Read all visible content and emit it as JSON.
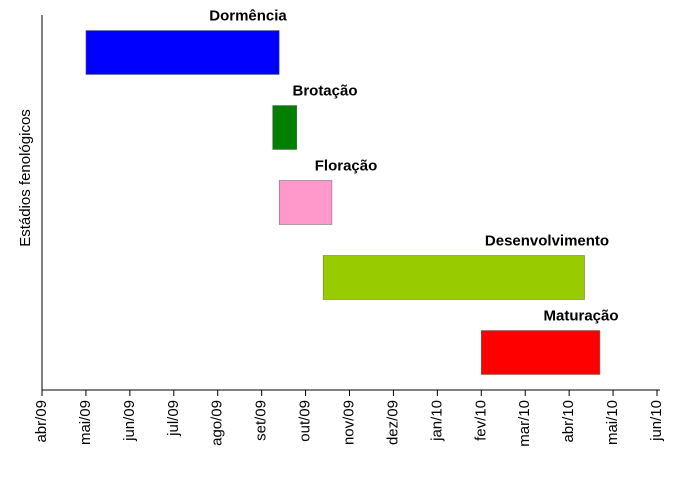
{
  "chart_data": {
    "type": "gantt",
    "ylabel": "Estádios fenológicos",
    "tasks": [
      {
        "label": "Dormência",
        "start": 1.0,
        "end": 5.4,
        "color": "#0000ff"
      },
      {
        "label": "Brotação",
        "start": 5.25,
        "end": 5.8,
        "color": "#008000"
      },
      {
        "label": "Floração",
        "start": 5.4,
        "end": 6.6,
        "color": "#ff99cc"
      },
      {
        "label": "Desenvolvimento",
        "start": 6.4,
        "end": 12.35,
        "color": "#99cc00"
      },
      {
        "label": "Maturação",
        "start": 10.0,
        "end": 12.7,
        "color": "#ff0000"
      }
    ],
    "xlim": [
      0,
      14
    ],
    "xticks": [
      {
        "value": 0,
        "label": "abr/09"
      },
      {
        "value": 1,
        "label": "mai/09"
      },
      {
        "value": 2,
        "label": "jun/09"
      },
      {
        "value": 3,
        "label": "jul/09"
      },
      {
        "value": 4,
        "label": "ago/09"
      },
      {
        "value": 5,
        "label": "set/09"
      },
      {
        "value": 6,
        "label": "out/09"
      },
      {
        "value": 7,
        "label": "nov/09"
      },
      {
        "value": 8,
        "label": "dez/09"
      },
      {
        "value": 9,
        "label": "jan/10"
      },
      {
        "value": 10,
        "label": "fev/10"
      },
      {
        "value": 11,
        "label": "mar/10"
      },
      {
        "value": 12,
        "label": "abr/10"
      },
      {
        "value": 13,
        "label": "mai/10"
      },
      {
        "value": 14,
        "label": "jun/10"
      }
    ]
  }
}
